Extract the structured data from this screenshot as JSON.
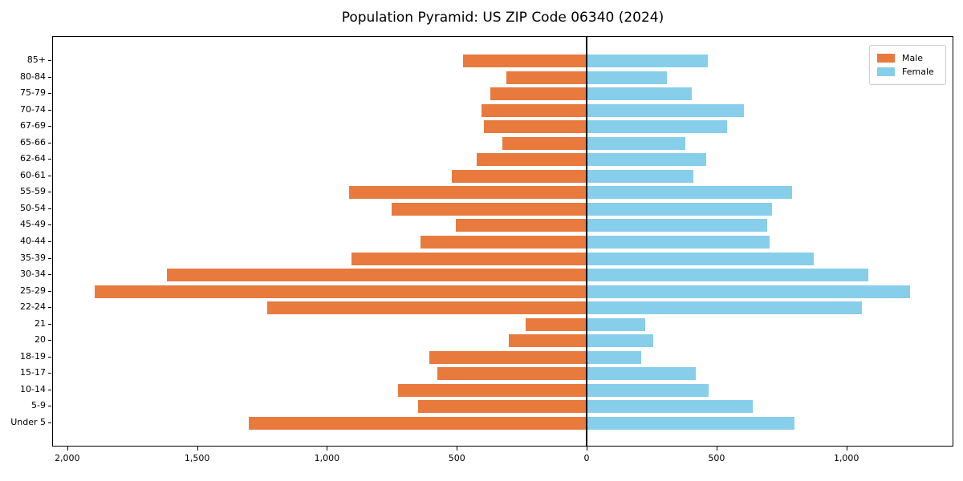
{
  "title": "Population Pyramid: US ZIP Code 06340 (2024)",
  "legend": {
    "male_label": "Male",
    "female_label": "Female"
  },
  "colors": {
    "male": "#e87a3e",
    "female": "#87ceeb",
    "axis": "#000000",
    "legend_border": "#cccccc"
  },
  "chart_data": {
    "type": "bar",
    "variant": "population-pyramid",
    "title": "Population Pyramid: US ZIP Code 06340 (2024)",
    "orientation": "horizontal",
    "grid": false,
    "legend_position": "upper right",
    "categories_top_to_bottom": [
      "85+",
      "80-84",
      "75-79",
      "70-74",
      "67-69",
      "65-66",
      "62-64",
      "60-61",
      "55-59",
      "50-54",
      "45-49",
      "40-44",
      "35-39",
      "30-34",
      "25-29",
      "22-24",
      "21",
      "20",
      "18-19",
      "15-17",
      "10-14",
      "5-9",
      "Under 5"
    ],
    "series": [
      {
        "name": "Male",
        "side": "left",
        "color": "#e87a3e",
        "values": [
          475,
          310,
          370,
          405,
          395,
          325,
          425,
          520,
          915,
          750,
          505,
          640,
          905,
          1615,
          1895,
          1230,
          235,
          300,
          605,
          575,
          725,
          650,
          1300
        ]
      },
      {
        "name": "Female",
        "side": "right",
        "color": "#87ceeb",
        "values": [
          465,
          310,
          405,
          605,
          540,
          380,
          460,
          410,
          790,
          715,
          695,
          705,
          875,
          1085,
          1245,
          1060,
          225,
          255,
          210,
          420,
          470,
          640,
          800
        ]
      }
    ],
    "xlim": [
      -2055,
      1415
    ],
    "x_ticks": [
      {
        "value": -2000,
        "label": "2,000"
      },
      {
        "value": -1500,
        "label": "1,500"
      },
      {
        "value": -1000,
        "label": "1,000"
      },
      {
        "value": -500,
        "label": "500"
      },
      {
        "value": 0,
        "label": "0"
      },
      {
        "value": 500,
        "label": "500"
      },
      {
        "value": 1000,
        "label": "1,000"
      }
    ]
  }
}
